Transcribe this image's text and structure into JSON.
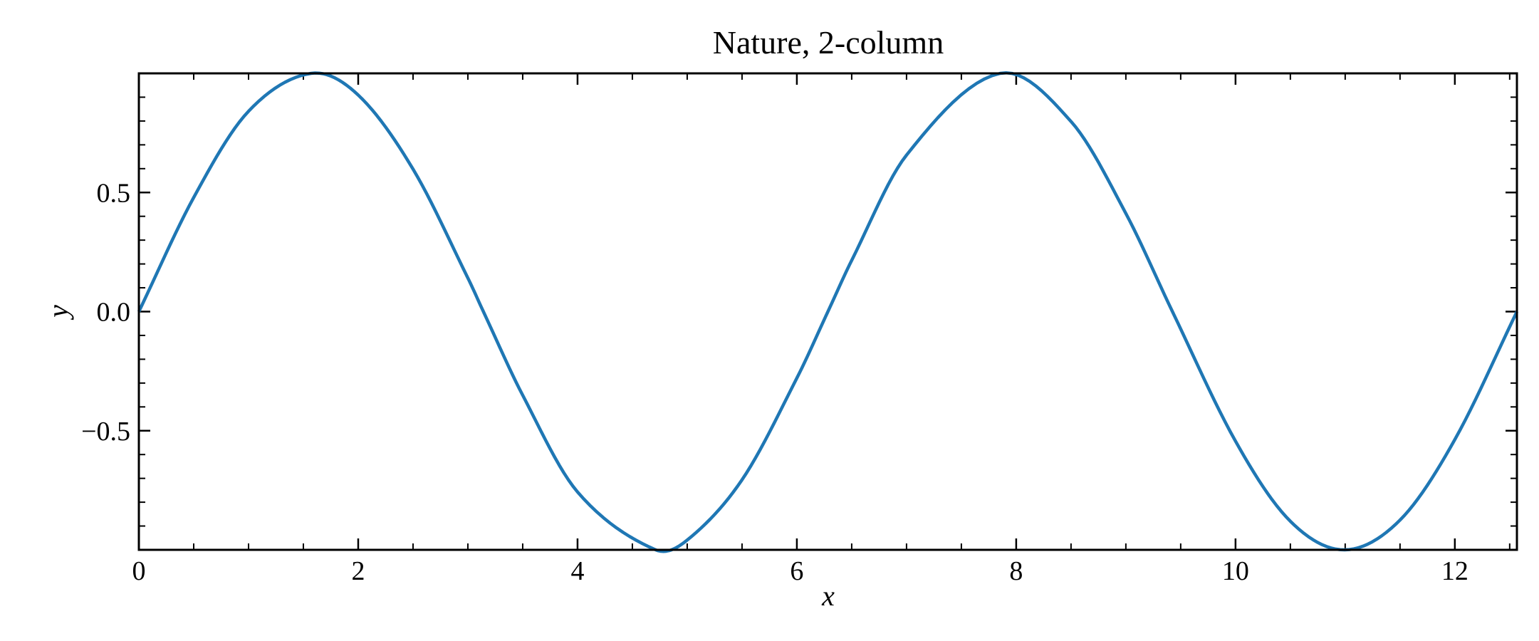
{
  "chart_data": {
    "type": "line",
    "title": "Nature, 2-column",
    "xlabel": "x",
    "ylabel": "y",
    "xlim": [
      0,
      12.566
    ],
    "ylim": [
      -1.0,
      1.0
    ],
    "x_ticks": [
      0,
      2,
      4,
      6,
      8,
      10,
      12
    ],
    "x_tick_labels": [
      "0",
      "2",
      "4",
      "6",
      "8",
      "10",
      "12"
    ],
    "y_ticks": [
      -0.5,
      0.0,
      0.5
    ],
    "y_tick_labels": [
      "−0.5",
      "0.0",
      "0.5"
    ],
    "x_minor_step": 0.5,
    "y_minor_step": 0.1,
    "tick_direction": "in",
    "ticks_on_all_sides": true,
    "grid": false,
    "legend": "none",
    "series": [
      {
        "color": "#1f77b4",
        "x": [
          0,
          0.5,
          1.0,
          1.5708,
          2.0,
          2.5,
          3.0,
          3.1416,
          3.5,
          4.0,
          4.7124,
          5.0,
          5.5,
          6.0,
          6.2832,
          6.5,
          7.0,
          7.854,
          8.5,
          9.0,
          9.4248,
          10.0,
          10.5,
          10.9956,
          11.5,
          12.0,
          12.566
        ],
        "y": [
          0.0,
          0.479,
          0.841,
          1.0,
          0.909,
          0.598,
          0.141,
          0.0,
          -0.351,
          -0.757,
          -1.0,
          -0.959,
          -0.706,
          -0.279,
          0.0,
          0.215,
          0.657,
          1.0,
          0.798,
          0.412,
          0.0,
          -0.544,
          -0.88,
          -1.0,
          -0.875,
          -0.537,
          0.0
        ]
      }
    ]
  }
}
